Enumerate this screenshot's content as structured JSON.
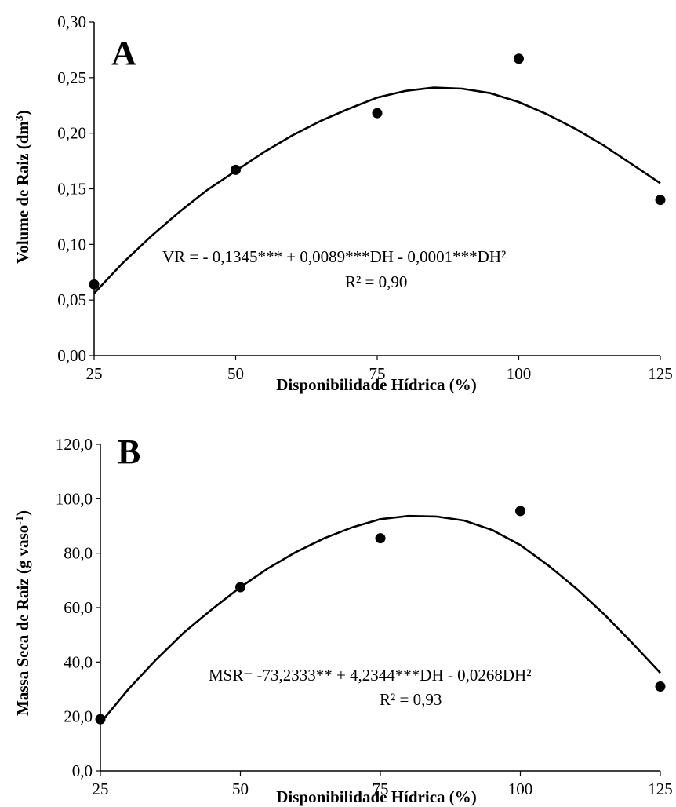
{
  "chart_data": [
    {
      "type": "scatter",
      "panel": "A",
      "xlabel": "Disponibilidade Hídrica  (%)",
      "ylabel": "Volume de Raiz (dm³)",
      "ylabel_main": "Volume de Raiz (dm",
      "ylabel_sup": "3",
      "ylabel_end": ")",
      "xlim": [
        25,
        125
      ],
      "ylim": [
        0.0,
        0.3
      ],
      "x_ticks": [
        25,
        50,
        75,
        100,
        125
      ],
      "x_tick_labels": [
        "25",
        "50",
        "75",
        "100",
        "125"
      ],
      "y_ticks": [
        0.0,
        0.05,
        0.1,
        0.15,
        0.2,
        0.25,
        0.3
      ],
      "y_tick_labels": [
        "0,00",
        "0,05",
        "0,10",
        "0,15",
        "0,20",
        "0,25",
        "0,30"
      ],
      "grid": false,
      "x": [
        25,
        50,
        75,
        100,
        125
      ],
      "y": [
        0.064,
        0.167,
        0.218,
        0.267,
        0.14
      ],
      "fit": {
        "x": [
          25,
          30,
          35,
          40,
          45,
          50,
          55,
          60,
          65,
          70,
          75,
          80,
          85,
          90,
          95,
          100,
          105,
          110,
          115,
          120,
          125
        ],
        "y": [
          0.056,
          0.083,
          0.107,
          0.129,
          0.149,
          0.166,
          0.183,
          0.198,
          0.211,
          0.222,
          0.232,
          0.238,
          0.241,
          0.24,
          0.236,
          0.228,
          0.217,
          0.204,
          0.189,
          0.172,
          0.155
        ]
      },
      "equation": "VR = - 0,1345*** + 0,0089***DH - 0,0001***DH²",
      "r2": "R² = 0,90"
    },
    {
      "type": "scatter",
      "panel": "B",
      "xlabel": "Disponibilidade Hídrica  (%)",
      "ylabel": "Massa Seca de Raiz (g vaso⁻¹)",
      "ylabel_main": "Massa Seca de Raiz (g vaso",
      "ylabel_sup": "-1",
      "ylabel_end": ")",
      "xlim": [
        25,
        125
      ],
      "ylim": [
        0.0,
        120.0
      ],
      "x_ticks": [
        25,
        50,
        75,
        100,
        125
      ],
      "x_tick_labels": [
        "25",
        "50",
        "75",
        "100",
        "125"
      ],
      "y_ticks": [
        0,
        20,
        40,
        60,
        80,
        100,
        120
      ],
      "y_tick_labels": [
        "0,0",
        "20,0",
        "40,0",
        "60,0",
        "80,0",
        "100,0",
        "120,0"
      ],
      "grid": false,
      "x": [
        25,
        50,
        75,
        100,
        125
      ],
      "y": [
        19.0,
        67.5,
        85.5,
        95.5,
        31.0
      ],
      "fit": {
        "x": [
          25,
          30,
          35,
          40,
          45,
          50,
          55,
          60,
          65,
          70,
          75,
          80,
          85,
          90,
          95,
          100,
          105,
          110,
          115,
          120,
          125
        ],
        "y": [
          17.6,
          30.0,
          41.0,
          51.0,
          59.5,
          67.5,
          74.5,
          80.5,
          85.5,
          89.5,
          92.5,
          93.7,
          93.5,
          92.0,
          88.5,
          83.0,
          75.5,
          67.0,
          57.5,
          47.0,
          36.0
        ]
      },
      "equation": "MSR= -73,2333**  + 4,2344***DH - 0,0268DH²",
      "r2": "R² = 0,93"
    }
  ]
}
